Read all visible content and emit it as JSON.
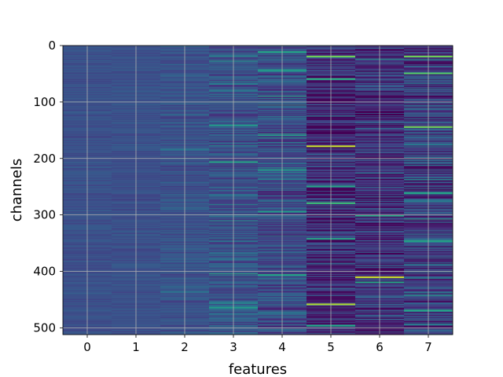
{
  "chart_data": {
    "type": "heatmap",
    "title": "",
    "xlabel": "features",
    "ylabel": "channels",
    "x_categories": [
      0,
      1,
      2,
      3,
      4,
      5,
      6,
      7
    ],
    "x_tick_labels": [
      "0",
      "1",
      "2",
      "3",
      "4",
      "5",
      "6",
      "7"
    ],
    "y_ticks": [
      0,
      100,
      200,
      300,
      400,
      500
    ],
    "y_tick_labels": [
      "0",
      "100",
      "200",
      "300",
      "400",
      "500"
    ],
    "ylim": [
      512,
      0
    ],
    "rows": 512,
    "grid": true,
    "colormap": "viridis",
    "column_profiles": [
      {
        "feature": 0,
        "baseline": 0.25,
        "variability": 0.05,
        "hotspots": []
      },
      {
        "feature": 1,
        "baseline": 0.25,
        "variability": 0.05,
        "hotspots": []
      },
      {
        "feature": 2,
        "baseline": 0.26,
        "variability": 0.08,
        "hotspots": [
          {
            "channel": 183,
            "value": 0.4
          },
          {
            "channel": 435,
            "value": 0.4
          }
        ]
      },
      {
        "feature": 3,
        "baseline": 0.26,
        "variability": 0.14,
        "hotspots": [
          {
            "channel": 140,
            "value": 0.55
          },
          {
            "channel": 205,
            "value": 0.6
          },
          {
            "channel": 463,
            "value": 0.55
          }
        ]
      },
      {
        "feature": 4,
        "baseline": 0.24,
        "variability": 0.16,
        "hotspots": [
          {
            "channel": 10,
            "value": 0.6
          },
          {
            "channel": 42,
            "value": 0.55
          },
          {
            "channel": 219,
            "value": 0.55
          },
          {
            "channel": 293,
            "value": 0.55
          },
          {
            "channel": 405,
            "value": 0.6
          }
        ]
      },
      {
        "feature": 5,
        "baseline": 0.12,
        "variability": 0.2,
        "hotspots": [
          {
            "channel": 18,
            "value": 0.8
          },
          {
            "channel": 58,
            "value": 0.65
          },
          {
            "channel": 177,
            "value": 0.95
          },
          {
            "channel": 248,
            "value": 0.6
          },
          {
            "channel": 278,
            "value": 0.7
          },
          {
            "channel": 341,
            "value": 0.6
          },
          {
            "channel": 457,
            "value": 0.9
          },
          {
            "channel": 495,
            "value": 0.6
          }
        ]
      },
      {
        "feature": 6,
        "baseline": 0.14,
        "variability": 0.2,
        "hotspots": [
          {
            "channel": 35,
            "value": 0.05
          },
          {
            "channel": 300,
            "value": 0.6
          },
          {
            "channel": 409,
            "value": 0.95
          },
          {
            "channel": 418,
            "value": 0.6
          }
        ]
      },
      {
        "feature": 7,
        "baseline": 0.2,
        "variability": 0.22,
        "hotspots": [
          {
            "channel": 18,
            "value": 0.8
          },
          {
            "channel": 48,
            "value": 0.75
          },
          {
            "channel": 143,
            "value": 0.8
          },
          {
            "channel": 213,
            "value": 0.05
          },
          {
            "channel": 260,
            "value": 0.6
          },
          {
            "channel": 345,
            "value": 0.6
          },
          {
            "channel": 468,
            "value": 0.6
          }
        ]
      }
    ]
  }
}
